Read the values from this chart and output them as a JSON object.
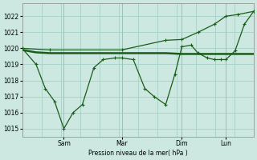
{
  "background_color": "#cce8e0",
  "grid_color": "#a0ccc0",
  "line_color": "#1a5c1a",
  "ylabel": "Pression niveau de la mer( hPa )",
  "ylim": [
    1014.5,
    1022.8
  ],
  "yticks": [
    1015,
    1016,
    1017,
    1018,
    1019,
    1020,
    1021,
    1022
  ],
  "xtick_labels": [
    "Sam",
    "Mar",
    "Dim",
    "Lun"
  ],
  "xtick_pos": [
    0.18,
    0.43,
    0.69,
    0.88
  ],
  "figsize": [
    3.2,
    2.0
  ],
  "dpi": 100,
  "line_diag_x": [
    0.0,
    0.12,
    0.43,
    0.62,
    0.69,
    0.76,
    0.83,
    0.88,
    0.93,
    1.0
  ],
  "line_diag_y": [
    1020.0,
    1019.9,
    1019.9,
    1020.5,
    1020.55,
    1021.0,
    1021.5,
    1022.0,
    1022.1,
    1022.3
  ],
  "line_flat_x": [
    0.0,
    0.06,
    0.12,
    0.18,
    0.25,
    0.32,
    0.43,
    0.5,
    0.57,
    0.62,
    0.69,
    0.75,
    0.81,
    0.88,
    1.0
  ],
  "line_flat_y": [
    1019.9,
    1019.75,
    1019.7,
    1019.7,
    1019.7,
    1019.7,
    1019.7,
    1019.7,
    1019.7,
    1019.7,
    1019.65,
    1019.65,
    1019.65,
    1019.65,
    1019.65
  ],
  "line_wavy_x": [
    0.0,
    0.06,
    0.1,
    0.14,
    0.18,
    0.22,
    0.26,
    0.31,
    0.35,
    0.4,
    0.43,
    0.48,
    0.53,
    0.57,
    0.62,
    0.66,
    0.69,
    0.73,
    0.76,
    0.8,
    0.83,
    0.86,
    0.88,
    0.92,
    0.96,
    1.0
  ],
  "line_wavy_y": [
    1020.0,
    1019.0,
    1017.5,
    1016.7,
    1015.0,
    1016.0,
    1016.5,
    1018.8,
    1019.3,
    1019.4,
    1019.4,
    1019.3,
    1017.5,
    1017.0,
    1016.5,
    1018.4,
    1020.1,
    1020.2,
    1019.7,
    1019.4,
    1019.3,
    1019.3,
    1019.3,
    1019.85,
    1021.5,
    1022.3
  ]
}
